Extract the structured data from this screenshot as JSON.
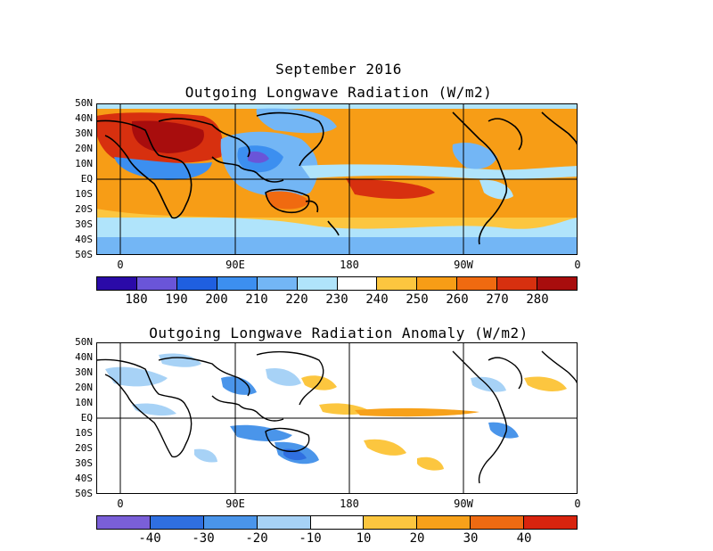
{
  "main_title": "September 2016",
  "panel1": {
    "title": "Outgoing Longwave Radiation (W/m2)",
    "lat_labels": [
      "50N",
      "40N",
      "30N",
      "20N",
      "10N",
      "EQ",
      "10S",
      "20S",
      "30S",
      "40S",
      "50S"
    ],
    "lon_labels": [
      "0",
      "90E",
      "180",
      "90W",
      "0"
    ],
    "colorbar": {
      "colors": [
        "#2a0aa8",
        "#6a55d8",
        "#1f5fe0",
        "#3c8ff0",
        "#73b6f5",
        "#b0e4fb",
        "#ffffff",
        "#fcc63f",
        "#f79d16",
        "#f06a10",
        "#d7300f",
        "#a80d0d"
      ],
      "labels": [
        "180",
        "190",
        "200",
        "210",
        "220",
        "230",
        "240",
        "250",
        "260",
        "270",
        "280"
      ]
    }
  },
  "panel2": {
    "title": "Outgoing Longwave Radiation Anomaly (W/m2)",
    "lat_labels": [
      "50N",
      "40N",
      "30N",
      "20N",
      "10N",
      "EQ",
      "10S",
      "20S",
      "30S",
      "40S",
      "50S"
    ],
    "lon_labels": [
      "0",
      "90E",
      "180",
      "90W",
      "0"
    ],
    "colorbar": {
      "colors": [
        "#7a5fd8",
        "#2f6fe0",
        "#4a95ea",
        "#a7d2f6",
        "#ffffff",
        "#fcc63f",
        "#f7a11a",
        "#ee6a12",
        "#d8240e"
      ],
      "labels": [
        "-40",
        "-30",
        "-20",
        "-10",
        "10",
        "20",
        "30",
        "40"
      ]
    }
  }
}
